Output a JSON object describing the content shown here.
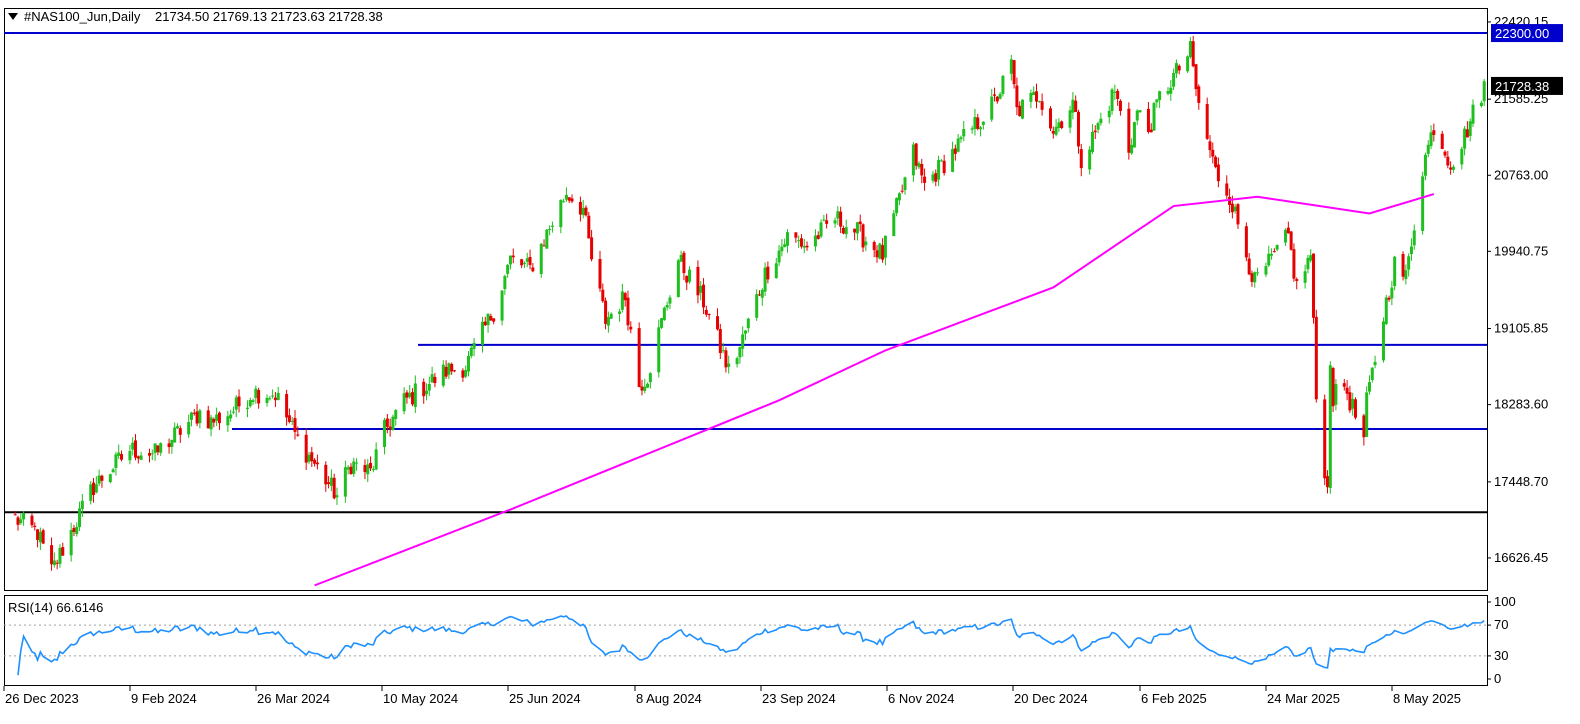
{
  "header": {
    "symbol": "#NAS100_Jun,Daily",
    "ohlc": "21734.50 21769.13 21723.63 21728.38"
  },
  "rsi_header": {
    "label": "RSI(14) 66.6146"
  },
  "colors": {
    "bull_candle": "#1fbf1f",
    "bear_candle": "#e60000",
    "moving_average": "#ff00ff",
    "level_line": "#0000cc",
    "support_line": "#000000",
    "rsi_line": "#1e90ff",
    "label_bg": "#000000",
    "label_fg": "#ffffff"
  },
  "chart_data": [
    {
      "type": "candlestick",
      "title": "#NAS100_Jun,Daily",
      "ylim": [
        16280,
        22560
      ],
      "y_ticks": [
        "22420.15",
        "21585.25",
        "20763.00",
        "19940.75",
        "19105.85",
        "18283.60",
        "17448.70",
        "16626.45"
      ],
      "x_ticks": [
        "26 Dec 2023",
        "9 Feb 2024",
        "26 Mar 2024",
        "10 May 2024",
        "25 Jun 2024",
        "8 Aug 2024",
        "23 Sep 2024",
        "6 Nov 2024",
        "20 Dec 2024",
        "6 Feb 2025",
        "24 Mar 2025",
        "8 May 2025"
      ],
      "current_price_label": "21728.38",
      "horizontal_levels": [
        {
          "value": 22300.0,
          "label": "22300.00",
          "color": "#0000cc"
        },
        {
          "value": 18930,
          "color": "#0000cc"
        },
        {
          "value": 18020,
          "color": "#0000cc"
        },
        {
          "value": 17120,
          "color": "#000000"
        }
      ],
      "moving_average": {
        "x": [
          "2024-04-11",
          "2024-06-20",
          "2024-09-24",
          "2024-11-01",
          "2024-12-31",
          "2025-02-12",
          "2025-03-14",
          "2025-04-23",
          "2025-05-16"
        ],
        "y": [
          16330,
          17150,
          18330,
          18870,
          19550,
          20430,
          20530,
          20350,
          20560
        ]
      },
      "price_path": {
        "dates": [
          "2023-12-26",
          "2024-01-03",
          "2024-01-08",
          "2024-01-23",
          "2024-02-05",
          "2024-02-14",
          "2024-03-01",
          "2024-03-05",
          "2024-03-12",
          "2024-03-20",
          "2024-03-28",
          "2024-04-05",
          "2024-04-19",
          "2024-04-24",
          "2024-05-01",
          "2024-05-06",
          "2024-05-13",
          "2024-05-28",
          "2024-06-04",
          "2024-06-14",
          "2024-06-20",
          "2024-06-27",
          "2024-07-10",
          "2024-07-16",
          "2024-07-19",
          "2024-07-24",
          "2024-07-31",
          "2024-08-05",
          "2024-08-08",
          "2024-08-19",
          "2024-08-28",
          "2024-09-06",
          "2024-09-10",
          "2024-09-19",
          "2024-09-27",
          "2024-10-04",
          "2024-10-14",
          "2024-10-22",
          "2024-10-31",
          "2024-11-11",
          "2024-11-15",
          "2024-11-22",
          "2024-12-03",
          "2024-12-10",
          "2024-12-16",
          "2024-12-18",
          "2024-12-26",
          "2024-12-31",
          "2025-01-07",
          "2025-01-10",
          "2025-01-13",
          "2025-01-22",
          "2025-01-27",
          "2025-01-30",
          "2025-02-03",
          "2025-02-07",
          "2025-02-18",
          "2025-02-21",
          "2025-02-27",
          "2025-03-04",
          "2025-03-13",
          "2025-03-18",
          "2025-03-25",
          "2025-03-28",
          "2025-04-02",
          "2025-04-04",
          "2025-04-08",
          "2025-04-09",
          "2025-04-10",
          "2025-04-14",
          "2025-04-21",
          "2025-04-22",
          "2025-04-28",
          "2025-05-02",
          "2025-05-06",
          "2025-05-12",
          "2025-05-16",
          "2025-05-22",
          "2025-05-26",
          "2025-05-29",
          "2025-06-03"
        ],
        "prices": [
          17050,
          16900,
          16480,
          17400,
          17800,
          17750,
          18200,
          18100,
          18200,
          18420,
          18400,
          17900,
          17300,
          17650,
          17550,
          18000,
          18320,
          18650,
          18700,
          19300,
          19850,
          19750,
          20580,
          20400,
          19850,
          19200,
          19450,
          18500,
          18600,
          19850,
          19400,
          18650,
          18900,
          19700,
          20100,
          20000,
          20300,
          20150,
          19900,
          21000,
          20650,
          20900,
          21300,
          21550,
          21950,
          21450,
          21650,
          21250,
          21550,
          20950,
          21100,
          21680,
          21050,
          21450,
          21250,
          21600,
          22100,
          21500,
          20800,
          20550,
          19600,
          19800,
          20100,
          19550,
          19900,
          18350,
          17350,
          18800,
          18350,
          18500,
          17900,
          18300,
          19250,
          19800,
          19650,
          20850,
          21300,
          20900,
          21100,
          21350,
          21730
        ]
      }
    },
    {
      "type": "line",
      "title": "RSI(14) 66.6146",
      "ylim": [
        0,
        100
      ],
      "y_ticks": [
        "100",
        "70",
        "30",
        "0"
      ],
      "reference_lines": [
        70,
        30
      ],
      "color": "#1e90ff"
    }
  ]
}
